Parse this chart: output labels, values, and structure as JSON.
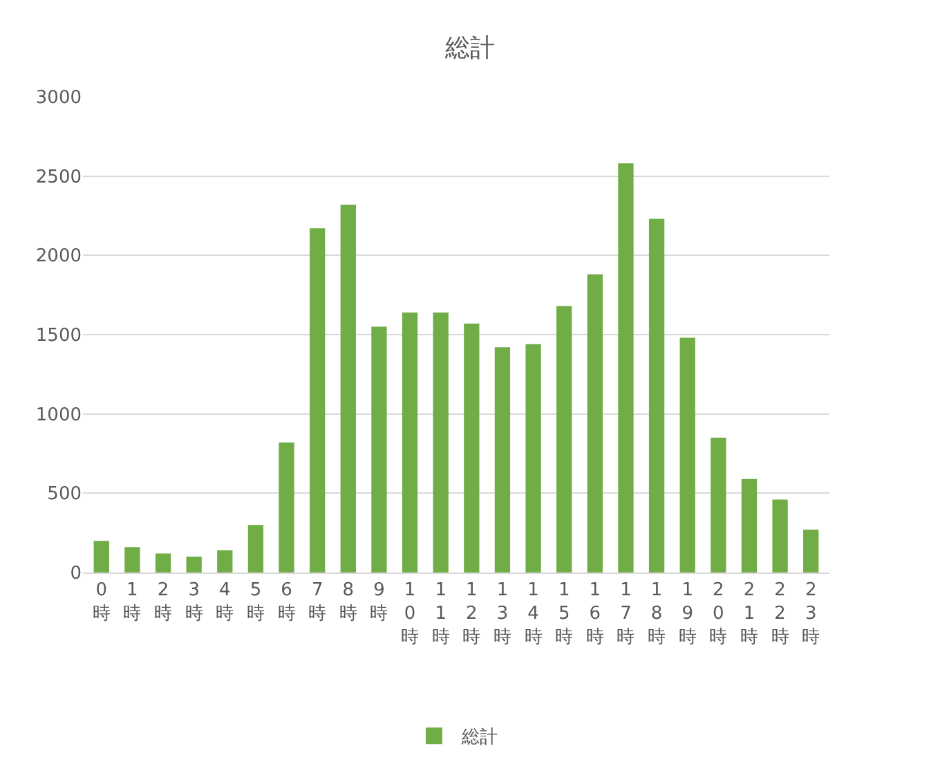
{
  "chart_data": {
    "type": "bar",
    "title": "総計",
    "categories": [
      "0時",
      "1時",
      "2時",
      "3時",
      "4時",
      "5時",
      "6時",
      "7時",
      "8時",
      "9時",
      "10時",
      "11時",
      "12時",
      "13時",
      "14時",
      "15時",
      "16時",
      "17時",
      "18時",
      "19時",
      "20時",
      "21時",
      "22時",
      "23時"
    ],
    "series": [
      {
        "name": "総計",
        "color": "#70ad47",
        "values": [
          200,
          160,
          120,
          100,
          140,
          300,
          820,
          2170,
          2320,
          1550,
          1640,
          1640,
          1570,
          1420,
          1440,
          1680,
          1880,
          2580,
          2230,
          1480,
          850,
          590,
          460,
          270
        ]
      }
    ],
    "ylim": [
      0,
      3000
    ],
    "yticks": [
      0,
      500,
      1000,
      1500,
      2000,
      2500,
      3000
    ],
    "grid": "y",
    "legend": "bottom"
  }
}
